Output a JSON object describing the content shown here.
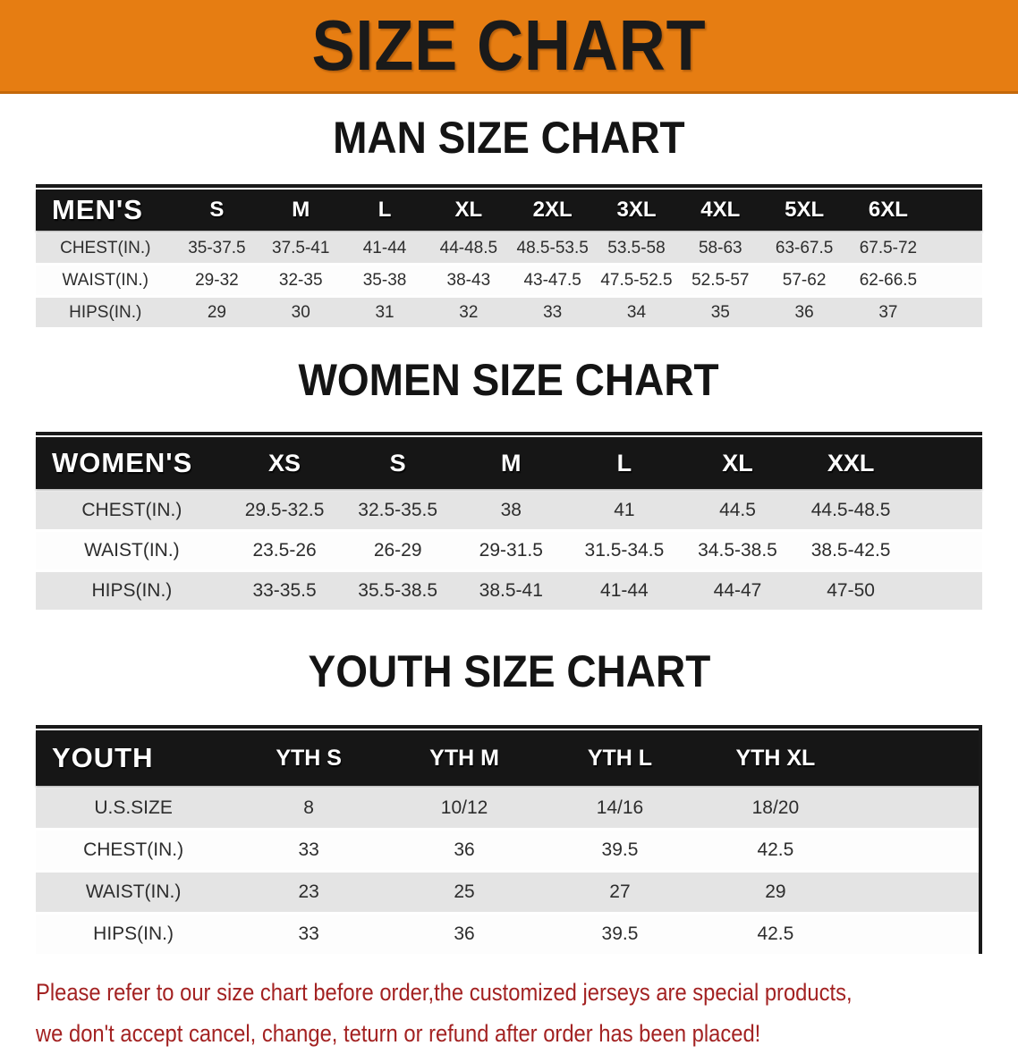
{
  "banner": {
    "title": "SIZE CHART"
  },
  "colors": {
    "banner_bg": "#e67d12",
    "header_bar_bg": "#161616",
    "row_gray": "#e4e4e4",
    "footer_text": "#a32222"
  },
  "sections": [
    {
      "heading": "MAN SIZE CHART",
      "table": {
        "header_label": "MEN'S",
        "columns": [
          "S",
          "M",
          "L",
          "XL",
          "2XL",
          "3XL",
          "4XL",
          "5XL",
          "6XL"
        ],
        "rows": [
          {
            "label": "CHEST(IN.)",
            "values": [
              "35-37.5",
              "37.5-41",
              "41-44",
              "44-48.5",
              "48.5-53.5",
              "53.5-58",
              "58-63",
              "63-67.5",
              "67.5-72"
            ]
          },
          {
            "label": "WAIST(IN.)",
            "values": [
              "29-32",
              "32-35",
              "35-38",
              "38-43",
              "43-47.5",
              "47.5-52.5",
              "52.5-57",
              "57-62",
              "62-66.5"
            ]
          },
          {
            "label": "HIPS(IN.)",
            "values": [
              "29",
              "30",
              "31",
              "32",
              "33",
              "34",
              "35",
              "36",
              "37"
            ]
          }
        ]
      }
    },
    {
      "heading": "WOMEN SIZE CHART",
      "table": {
        "header_label": "WOMEN'S",
        "columns": [
          "XS",
          "S",
          "M",
          "L",
          "XL",
          "XXL"
        ],
        "rows": [
          {
            "label": "CHEST(IN.)",
            "values": [
              "29.5-32.5",
              "32.5-35.5",
              "38",
              "41",
              "44.5",
              "44.5-48.5"
            ]
          },
          {
            "label": "WAIST(IN.)",
            "values": [
              "23.5-26",
              "26-29",
              "29-31.5",
              "31.5-34.5",
              "34.5-38.5",
              "38.5-42.5"
            ]
          },
          {
            "label": "HIPS(IN.)",
            "values": [
              "33-35.5",
              "35.5-38.5",
              "38.5-41",
              "41-44",
              "44-47",
              "47-50"
            ]
          }
        ]
      }
    },
    {
      "heading": "YOUTH SIZE CHART",
      "table": {
        "header_label": "YOUTH",
        "columns": [
          "YTH S",
          "YTH M",
          "YTH L",
          "YTH XL"
        ],
        "rows": [
          {
            "label": "U.S.SIZE",
            "values": [
              "8",
              "10/12",
              "14/16",
              "18/20"
            ]
          },
          {
            "label": "CHEST(IN.)",
            "values": [
              "33",
              "36",
              "39.5",
              "42.5"
            ]
          },
          {
            "label": "WAIST(IN.)",
            "values": [
              "23",
              "25",
              "27",
              "29"
            ]
          },
          {
            "label": "HIPS(IN.)",
            "values": [
              "33",
              "36",
              "39.5",
              "42.5"
            ]
          }
        ]
      }
    }
  ],
  "footer": {
    "line1": "Please refer to our size chart before order,the customized jerseys are special products,",
    "line2": "we don't accept cancel, change, teturn or refund after order has been placed!"
  }
}
